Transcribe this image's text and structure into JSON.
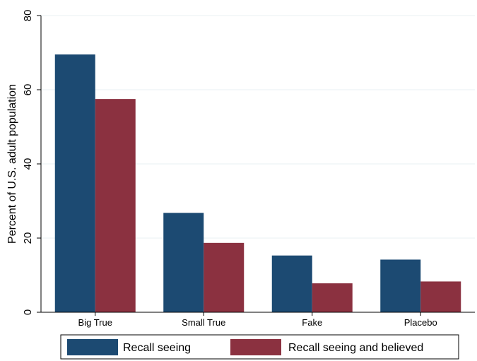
{
  "chart_data": {
    "type": "bar",
    "categories": [
      "Big True",
      "Small True",
      "Fake",
      "Placebo"
    ],
    "series": [
      {
        "name": "Recall seeing",
        "values": [
          69.5,
          26.8,
          15.3,
          14.2
        ],
        "color": "#1c4a72"
      },
      {
        "name": "Recall seeing and believed",
        "values": [
          57.5,
          18.7,
          7.8,
          8.3
        ],
        "color": "#8b3140"
      }
    ],
    "title": "",
    "xlabel": "",
    "ylabel": "Percent of U.S. adult population",
    "ylim": [
      0,
      80
    ],
    "yticks": [
      0,
      20,
      40,
      60,
      80
    ],
    "grid": true,
    "legend": "bottom"
  }
}
